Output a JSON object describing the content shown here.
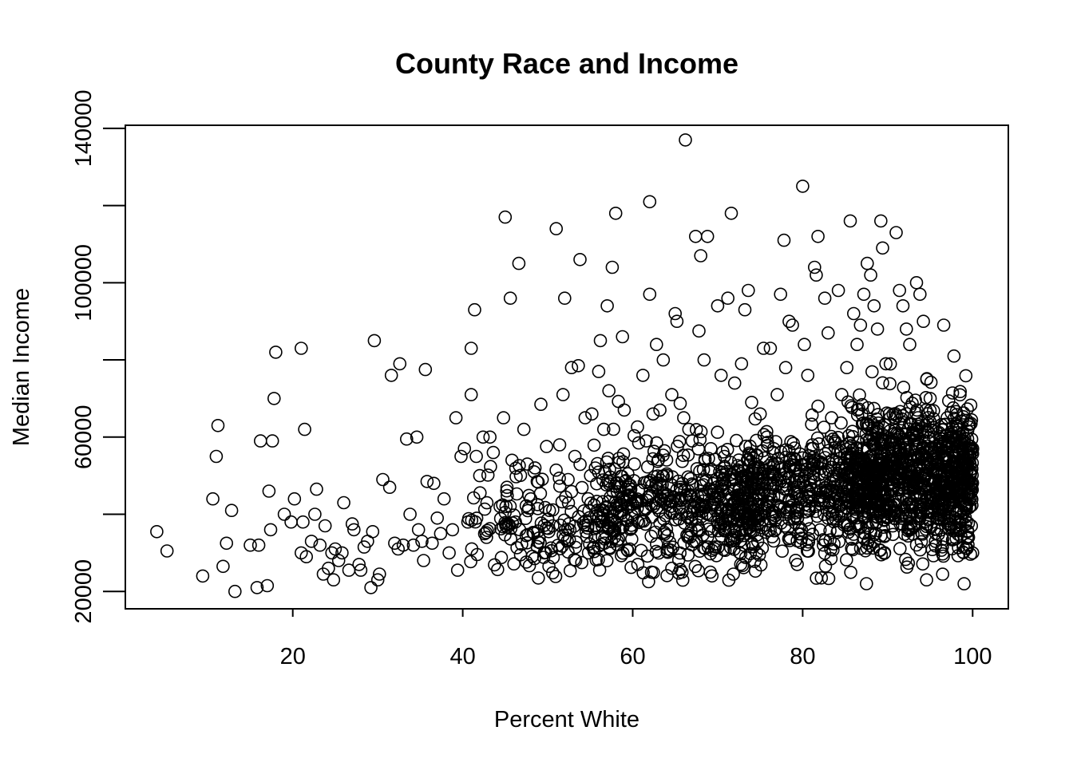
{
  "chart_data": {
    "type": "scatter",
    "title": "County Race and Income",
    "xlabel": "Percent White",
    "ylabel": "Median Income",
    "xlim": [
      0.3,
      104.2
    ],
    "ylim": [
      15500,
      140800
    ],
    "xticks": [
      20,
      40,
      60,
      80,
      100
    ],
    "yticks": [
      20000,
      60000,
      100000,
      140000
    ],
    "xtick_labels": [
      "20",
      "40",
      "60",
      "80",
      "100"
    ],
    "ytick_labels": [
      "20000",
      "60000",
      "100000",
      "140000"
    ],
    "y_minor_ticks": [
      40000,
      80000,
      120000
    ],
    "marker": "open-circle",
    "grid": false,
    "points_sample": [
      [
        4.0,
        35500
      ],
      [
        5.2,
        30500
      ],
      [
        9.4,
        24000
      ],
      [
        10.6,
        44000
      ],
      [
        11.0,
        55000
      ],
      [
        11.2,
        63000
      ],
      [
        11.8,
        26500
      ],
      [
        12.2,
        32500
      ],
      [
        12.8,
        41000
      ],
      [
        13.2,
        20000
      ],
      [
        15.0,
        32000
      ],
      [
        15.8,
        21000
      ],
      [
        16.0,
        32000
      ],
      [
        16.2,
        59000
      ],
      [
        17.0,
        21500
      ],
      [
        17.2,
        46000
      ],
      [
        17.4,
        36000
      ],
      [
        17.6,
        59000
      ],
      [
        17.8,
        70000
      ],
      [
        18.0,
        82000
      ],
      [
        19.0,
        40000
      ],
      [
        19.8,
        38000
      ],
      [
        20.2,
        44000
      ],
      [
        21.0,
        83000
      ],
      [
        21.0,
        30000
      ],
      [
        21.2,
        38000
      ],
      [
        21.4,
        62000
      ],
      [
        21.6,
        29000
      ],
      [
        22.2,
        33000
      ],
      [
        22.6,
        40000
      ],
      [
        22.8,
        46500
      ],
      [
        23.2,
        32000
      ],
      [
        23.6,
        24500
      ],
      [
        23.8,
        37000
      ],
      [
        24.2,
        26000
      ],
      [
        24.6,
        30000
      ],
      [
        24.8,
        23000
      ],
      [
        25.0,
        31000
      ],
      [
        25.4,
        28000
      ],
      [
        25.8,
        30000
      ],
      [
        26.0,
        43000
      ],
      [
        26.6,
        25500
      ],
      [
        27.0,
        37500
      ],
      [
        27.2,
        36000
      ],
      [
        27.8,
        27000
      ],
      [
        28.0,
        25500
      ],
      [
        28.4,
        31500
      ],
      [
        28.8,
        33000
      ],
      [
        29.2,
        21000
      ],
      [
        29.4,
        35500
      ],
      [
        29.6,
        85000
      ],
      [
        30.0,
        23000
      ],
      [
        30.2,
        24500
      ],
      [
        30.6,
        49000
      ],
      [
        31.4,
        47000
      ],
      [
        31.6,
        76000
      ],
      [
        32.0,
        32500
      ],
      [
        32.4,
        31000
      ],
      [
        32.6,
        79000
      ],
      [
        33.0,
        32000
      ],
      [
        33.4,
        59500
      ],
      [
        33.8,
        40000
      ],
      [
        34.2,
        32000
      ],
      [
        34.6,
        60000
      ],
      [
        34.8,
        36000
      ],
      [
        35.2,
        33000
      ],
      [
        35.4,
        28000
      ],
      [
        35.6,
        77500
      ],
      [
        35.8,
        48500
      ],
      [
        36.4,
        32500
      ],
      [
        36.6,
        48000
      ],
      [
        37.0,
        39000
      ],
      [
        37.4,
        35000
      ],
      [
        37.8,
        44000
      ],
      [
        38.4,
        30000
      ],
      [
        38.8,
        36000
      ],
      [
        39.2,
        65000
      ],
      [
        39.4,
        25500
      ],
      [
        39.8,
        55000
      ],
      [
        40.2,
        57000
      ],
      [
        40.6,
        38000
      ],
      [
        41.0,
        83000
      ],
      [
        41.0,
        71000
      ],
      [
        41.4,
        93000
      ],
      [
        41.6,
        55000
      ],
      [
        42.0,
        50000
      ],
      [
        42.4,
        60000
      ],
      [
        42.8,
        34000
      ],
      [
        43.2,
        60000
      ],
      [
        43.6,
        56000
      ],
      [
        44.4,
        42000
      ],
      [
        44.8,
        65000
      ],
      [
        45.0,
        117000
      ],
      [
        45.2,
        47000
      ],
      [
        45.6,
        96000
      ],
      [
        45.8,
        54000
      ],
      [
        46.2,
        38000
      ],
      [
        46.6,
        105000
      ],
      [
        46.8,
        29500
      ],
      [
        47.2,
        62000
      ],
      [
        47.6,
        53000
      ],
      [
        48.0,
        44000
      ],
      [
        48.4,
        51000
      ],
      [
        48.8,
        42500
      ],
      [
        49.2,
        68500
      ],
      [
        49.6,
        30000
      ],
      [
        50.2,
        41000
      ],
      [
        50.6,
        37000
      ],
      [
        51.0,
        114000
      ],
      [
        51.4,
        58000
      ],
      [
        51.8,
        71000
      ],
      [
        52.0,
        96000
      ],
      [
        52.4,
        49000
      ],
      [
        52.8,
        78000
      ],
      [
        53.2,
        55000
      ],
      [
        53.6,
        78500
      ],
      [
        53.8,
        106000
      ],
      [
        54.4,
        65000
      ],
      [
        54.8,
        30000
      ],
      [
        55.2,
        66000
      ],
      [
        55.6,
        52000
      ],
      [
        56.0,
        77000
      ],
      [
        56.2,
        85000
      ],
      [
        56.6,
        62000
      ],
      [
        57.0,
        94000
      ],
      [
        57.2,
        72000
      ],
      [
        57.6,
        104000
      ],
      [
        58.0,
        118000
      ],
      [
        58.4,
        47000
      ],
      [
        58.8,
        86000
      ],
      [
        59.0,
        67000
      ],
      [
        59.6,
        45000
      ],
      [
        60.2,
        53000
      ],
      [
        60.6,
        27000
      ],
      [
        61.2,
        76000
      ],
      [
        61.6,
        59000
      ],
      [
        62.0,
        121000
      ],
      [
        62.0,
        97000
      ],
      [
        62.4,
        66000
      ],
      [
        62.8,
        84000
      ],
      [
        63.2,
        67000
      ],
      [
        63.6,
        80000
      ],
      [
        64.0,
        50000
      ],
      [
        64.6,
        71000
      ],
      [
        65.0,
        92000
      ],
      [
        65.2,
        90000
      ],
      [
        65.6,
        47000
      ],
      [
        65.8,
        25000
      ],
      [
        66.0,
        65000
      ],
      [
        66.2,
        137000
      ],
      [
        66.6,
        62000
      ],
      [
        67.0,
        59000
      ],
      [
        67.4,
        112000
      ],
      [
        67.8,
        87500
      ],
      [
        68.0,
        107000
      ],
      [
        68.4,
        80000
      ],
      [
        68.8,
        112000
      ],
      [
        69.2,
        57000
      ],
      [
        69.6,
        43000
      ],
      [
        70.0,
        94000
      ],
      [
        70.4,
        76000
      ],
      [
        70.8,
        55000
      ],
      [
        71.2,
        96000
      ],
      [
        71.6,
        118000
      ],
      [
        72.0,
        74000
      ],
      [
        72.4,
        45000
      ],
      [
        72.8,
        79000
      ],
      [
        73.2,
        93000
      ],
      [
        73.6,
        98000
      ],
      [
        74.0,
        69000
      ],
      [
        74.4,
        52000
      ],
      [
        75.0,
        66000
      ],
      [
        75.4,
        83000
      ],
      [
        75.8,
        60000
      ],
      [
        76.2,
        83000
      ],
      [
        76.6,
        57000
      ],
      [
        77.0,
        71000
      ],
      [
        77.4,
        97000
      ],
      [
        77.8,
        111000
      ],
      [
        78.0,
        78000
      ],
      [
        78.4,
        90000
      ],
      [
        78.8,
        89000
      ],
      [
        79.2,
        52000
      ],
      [
        79.6,
        47000
      ],
      [
        80.0,
        125000
      ],
      [
        80.2,
        84000
      ],
      [
        80.6,
        76000
      ],
      [
        81.0,
        57000
      ],
      [
        81.4,
        104000
      ],
      [
        81.6,
        102000
      ],
      [
        81.8,
        112000
      ],
      [
        82.2,
        23500
      ],
      [
        82.6,
        96000
      ],
      [
        83.0,
        87000
      ],
      [
        83.4,
        65000
      ],
      [
        83.8,
        49000
      ],
      [
        84.2,
        98000
      ],
      [
        84.6,
        71000
      ],
      [
        85.2,
        78000
      ],
      [
        85.6,
        116000
      ],
      [
        86.0,
        92000
      ],
      [
        86.4,
        84000
      ],
      [
        86.8,
        89000
      ],
      [
        87.2,
        97000
      ],
      [
        87.6,
        105000
      ],
      [
        88.0,
        102000
      ],
      [
        88.4,
        94000
      ],
      [
        88.8,
        88000
      ],
      [
        89.2,
        116000
      ],
      [
        89.4,
        109000
      ],
      [
        89.8,
        79000
      ],
      [
        90.2,
        66000
      ],
      [
        90.6,
        55000
      ],
      [
        91.0,
        113000
      ],
      [
        91.4,
        98000
      ],
      [
        91.8,
        94000
      ],
      [
        92.2,
        88000
      ],
      [
        92.6,
        84000
      ],
      [
        93.0,
        61000
      ],
      [
        93.4,
        100000
      ],
      [
        93.8,
        97000
      ],
      [
        94.2,
        90000
      ],
      [
        94.6,
        75000
      ],
      [
        95.0,
        70000
      ],
      [
        95.4,
        60000
      ],
      [
        95.8,
        45000
      ],
      [
        96.2,
        57000
      ],
      [
        96.6,
        89000
      ],
      [
        97.0,
        65000
      ],
      [
        97.4,
        50000
      ],
      [
        97.8,
        81000
      ],
      [
        98.2,
        41000
      ],
      [
        98.6,
        36000
      ],
      [
        99.0,
        22000
      ],
      [
        99.4,
        53000
      ],
      [
        99.8,
        48000
      ],
      [
        100.0,
        30000
      ],
      [
        100.0,
        57000
      ]
    ],
    "dense_regions": [
      {
        "x_range": [
          85,
          100
        ],
        "y_center": 50000,
        "y_spread": 9000,
        "approx_count": 900
      },
      {
        "x_range": [
          70,
          90
        ],
        "y_center": 46000,
        "y_spread": 8000,
        "approx_count": 650
      },
      {
        "x_range": [
          55,
          75
        ],
        "y_center": 42000,
        "y_spread": 8000,
        "approx_count": 450
      },
      {
        "x_range": [
          40,
          60
        ],
        "y_center": 38000,
        "y_spread": 7000,
        "approx_count": 200
      }
    ]
  }
}
